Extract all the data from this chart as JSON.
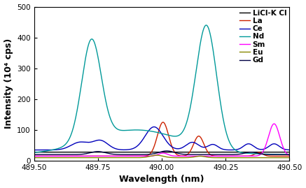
{
  "title": "",
  "xlabel": "Wavelength (nm)",
  "ylabel": "Intensity (10⁴ cps)",
  "xlim": [
    489.5,
    490.5
  ],
  "ylim": [
    0,
    500
  ],
  "yticks": [
    0,
    100,
    200,
    300,
    400,
    500
  ],
  "xticks": [
    489.5,
    489.75,
    490.0,
    490.25,
    490.5
  ],
  "series": [
    {
      "label": "LiCl-K Cl",
      "color": "#000000",
      "linewidth": 1.0
    },
    {
      "label": "La",
      "color": "#cc2200",
      "linewidth": 1.0
    },
    {
      "label": "Ce",
      "color": "#0000bb",
      "linewidth": 1.0
    },
    {
      "label": "Nd",
      "color": "#009999",
      "linewidth": 1.0
    },
    {
      "label": "Sm",
      "color": "#ff00ff",
      "linewidth": 1.0
    },
    {
      "label": "Eu",
      "color": "#888800",
      "linewidth": 1.0
    },
    {
      "label": "Gd",
      "color": "#000044",
      "linewidth": 1.0
    }
  ],
  "background_color": "#ffffff",
  "legend_fontsize": 7.5,
  "axis_fontsize": 9,
  "tick_fontsize": 7.5
}
